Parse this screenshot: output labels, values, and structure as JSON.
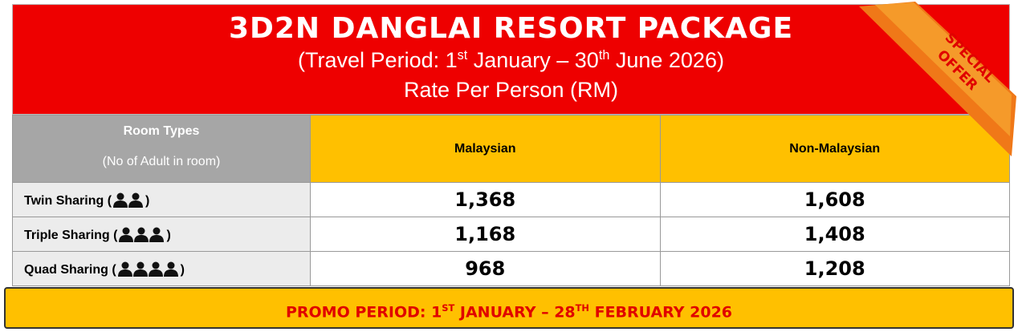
{
  "header": {
    "title": "3D2N DANGLAI RESORT PACKAGE",
    "subtitle": [
      "(Travel Period: 1",
      "st",
      " January – 30",
      "th",
      " June 2026)"
    ],
    "rate_line": "Rate Per Person (RM)",
    "badge": [
      "SPECIAL",
      "OFFER"
    ]
  },
  "table": {
    "columns": {
      "room_types": "Room Types",
      "room_note": "(No of Adult in room)",
      "malaysian": "Malaysian",
      "non_malaysian": "Non-Malaysian"
    },
    "rows": [
      {
        "label": "Twin Sharing (",
        "close": ")",
        "persons": 2,
        "malaysian": "1,368",
        "non_malaysian": "1,608"
      },
      {
        "label": "Triple Sharing (",
        "close": ")",
        "persons": 3,
        "malaysian": "1,168",
        "non_malaysian": "1,408"
      },
      {
        "label": "Quad Sharing (",
        "close": ")",
        "persons": 4,
        "malaysian": "968",
        "non_malaysian": "1,208"
      }
    ]
  },
  "footer": {
    "promo": [
      "PROMO PERIOD: 1",
      "ST",
      " JANUARY – 28",
      "TH",
      " FEBRUARY 2026"
    ]
  }
}
